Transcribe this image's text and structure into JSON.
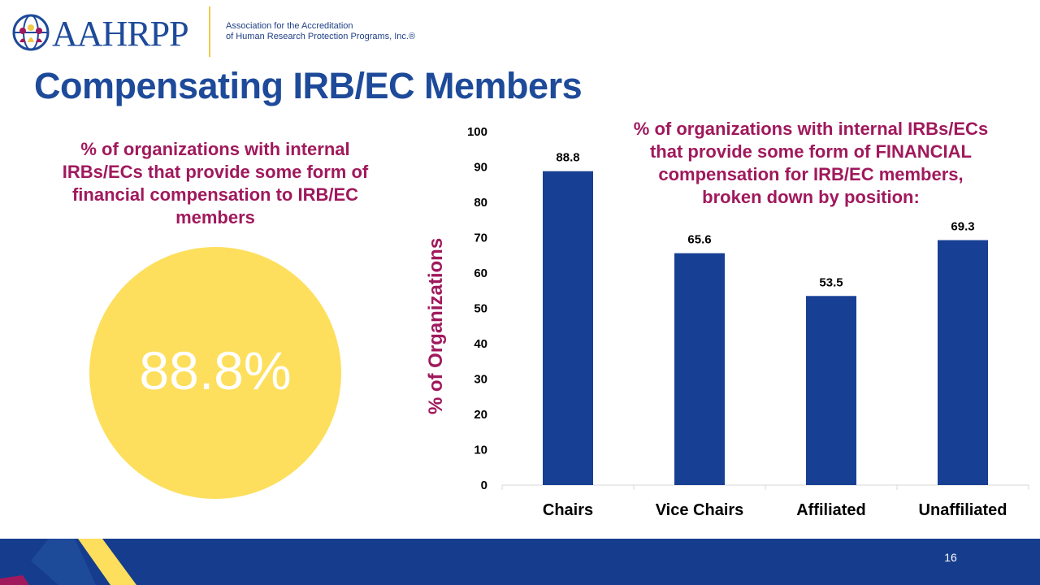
{
  "header": {
    "logo_text": "AAHRPP",
    "org_line1": "Association for the Accreditation",
    "org_line2": "of Human Research Protection Programs, Inc.®"
  },
  "slide": {
    "title": "Compensating IRB/EC Members",
    "left_caption": "% of organizations with internal IRBs/ECs that provide some form of financial compensation to IRB/EC members",
    "big_value": "88.8%",
    "page_number": "16"
  },
  "colors": {
    "brand_blue": "#1e4a9a",
    "bar_blue": "#173f94",
    "caption_magenta": "#a0195c",
    "circle_yellow": "#fddf5d",
    "footer_navy": "#163d8d"
  },
  "chart_data": {
    "type": "bar",
    "title": "% of organizations with internal IRBs/ECs that provide some form of FINANCIAL compensation for IRB/EC members, broken down by position:",
    "title_lines": [
      "% of organizations with internal IRBs/ECs",
      "that provide some form of FINANCIAL",
      "compensation for IRB/EC members,",
      "broken down by position:"
    ],
    "categories": [
      "Chairs",
      "Vice Chairs",
      "Affiliated",
      "Unaffiliated"
    ],
    "values": [
      88.8,
      65.6,
      53.5,
      69.3
    ],
    "data_labels": [
      "88.8",
      "65.6",
      "53.5",
      "69.3"
    ],
    "xlabel": "",
    "ylabel": "% of Organizations",
    "ylim": [
      0,
      100
    ],
    "yticks": [
      0,
      10,
      20,
      30,
      40,
      50,
      60,
      70,
      80,
      90,
      100
    ],
    "grid": false,
    "legend": "none"
  }
}
